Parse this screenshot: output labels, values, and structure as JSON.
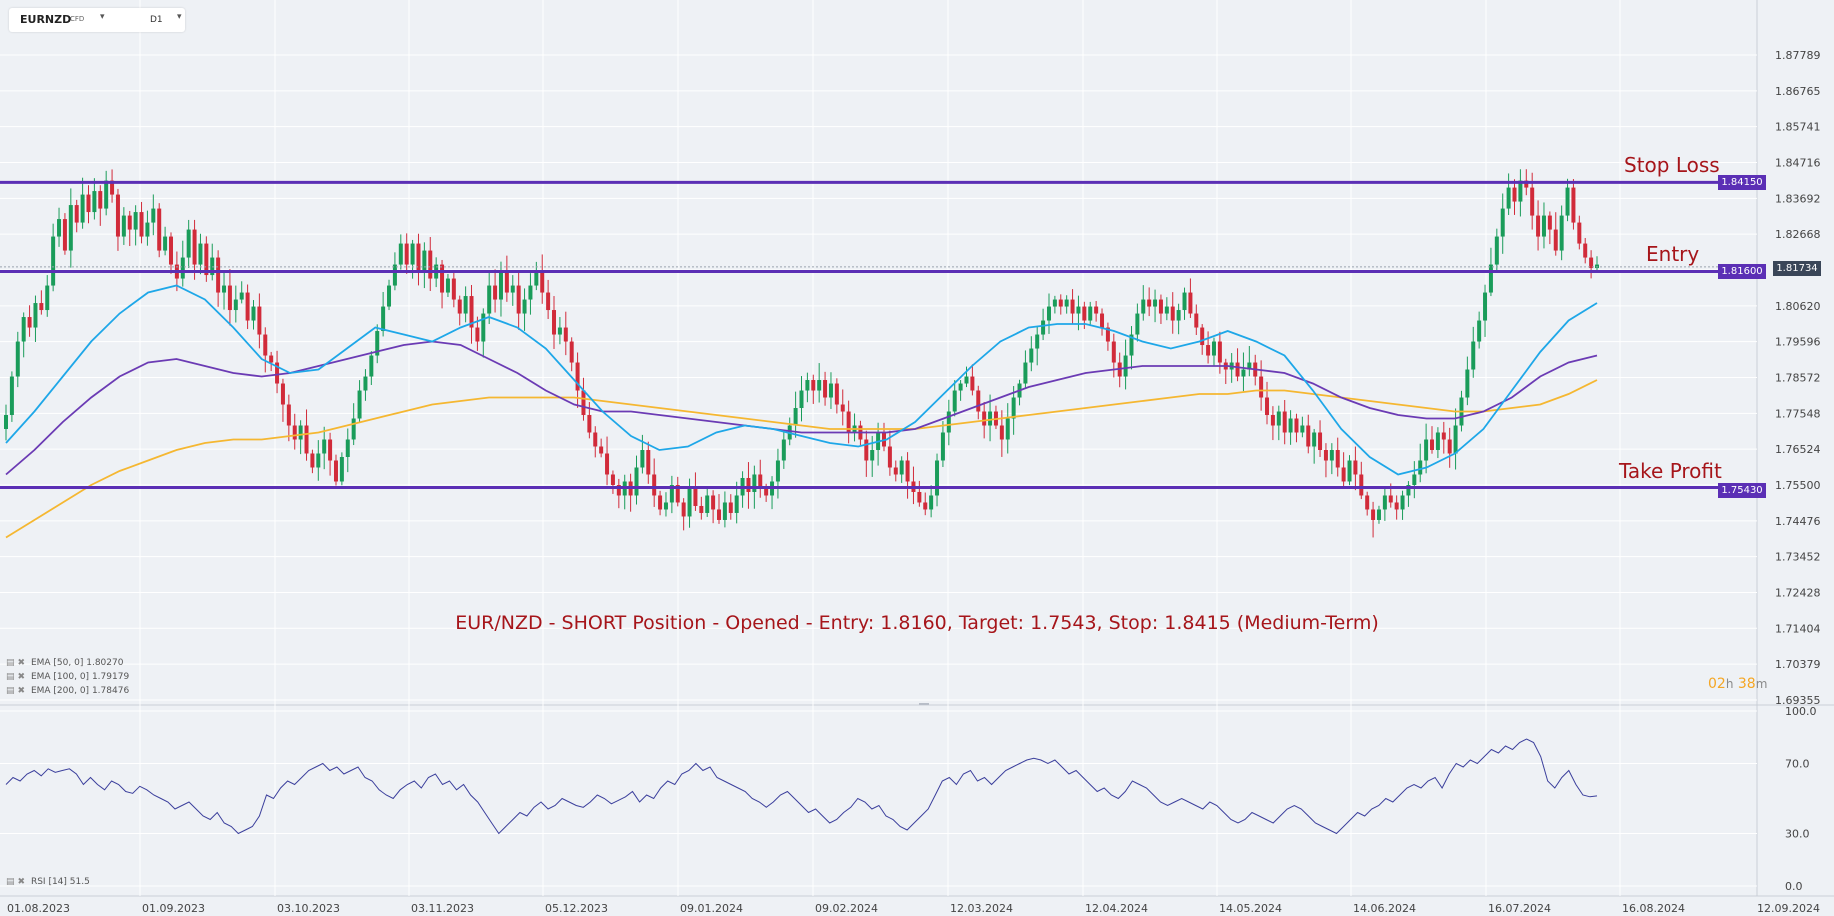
{
  "toolbar": {
    "symbol": "EURNZD",
    "instrument_type": "CFD",
    "timeframe": "D1",
    "caret_icon": "chevron-down-icon"
  },
  "chart_title": "EUR/NZD - SHORT Position - Opened - Entry: 1.8160, Target: 1.7543, Stop: 1.8415 (Medium-Term)",
  "levels": [
    {
      "name": "Stop Loss",
      "value": 1.8415,
      "label": "1.84150",
      "color": "#5b2fb5"
    },
    {
      "name": "Entry",
      "value": 1.816,
      "label": "1.81600",
      "color": "#5b2fb5"
    },
    {
      "name": "Take Profit",
      "value": 1.7543,
      "label": "1.75430",
      "color": "#5b2fb5"
    }
  ],
  "current_price": {
    "value": 1.81734,
    "label": "1.81734",
    "color": "#3a4658"
  },
  "countdown": {
    "h": "02",
    "h_unit": "h",
    "m": "38",
    "m_unit": "m"
  },
  "indicators": [
    {
      "label": "EMA",
      "params": "[50, 0]",
      "value": "1.80270",
      "color": "#1ea7e8"
    },
    {
      "label": "EMA",
      "params": "[100, 0]",
      "value": "1.79179",
      "color": "#6b3bb4"
    },
    {
      "label": "EMA",
      "params": "[200, 0]",
      "value": "1.78476",
      "color": "#f5b731"
    }
  ],
  "rsi_legend": {
    "label": "RSI",
    "params": "[14]",
    "value": "51.5",
    "color": "#3b3f9c"
  },
  "chart_data": {
    "type": "candlestick",
    "price_axis_ticks": [
      "1.87789",
      "1.86765",
      "1.85741",
      "1.84716",
      "1.83692",
      "1.82668",
      "1.81644",
      "1.80620",
      "1.79596",
      "1.78572",
      "1.77548",
      "1.76524",
      "1.75500",
      "1.74476",
      "1.73452",
      "1.72428",
      "1.71404",
      "1.70379",
      "1.69355"
    ],
    "price_ylim": [
      1.69355,
      1.87789
    ],
    "rsi_axis_ticks": [
      "100.0",
      "70.0",
      "30.0",
      "0.0"
    ],
    "rsi_ylim": [
      0,
      100
    ],
    "date_ticks": [
      "01.08.2023",
      "01.09.2023",
      "03.10.2023",
      "03.11.2023",
      "05.12.2023",
      "09.01.2024",
      "09.02.2024",
      "12.03.2024",
      "12.04.2024",
      "14.05.2024",
      "14.06.2024",
      "16.07.2024",
      "16.08.2024",
      "12.09.2024"
    ],
    "close": [
      1.775,
      1.786,
      1.796,
      1.803,
      1.8,
      1.807,
      1.805,
      1.812,
      1.826,
      1.831,
      1.822,
      1.835,
      1.83,
      1.838,
      1.833,
      1.839,
      1.834,
      1.842,
      1.838,
      1.826,
      1.832,
      1.828,
      1.833,
      1.826,
      1.83,
      1.834,
      1.822,
      1.826,
      1.818,
      1.814,
      1.82,
      1.828,
      1.818,
      1.824,
      1.815,
      1.82,
      1.81,
      1.812,
      1.805,
      1.808,
      1.81,
      1.802,
      1.806,
      1.798,
      1.792,
      1.79,
      1.784,
      1.778,
      1.772,
      1.768,
      1.772,
      1.764,
      1.76,
      1.764,
      1.768,
      1.762,
      1.756,
      1.763,
      1.768,
      1.774,
      1.782,
      1.786,
      1.792,
      1.799,
      1.806,
      1.812,
      1.818,
      1.824,
      1.818,
      1.824,
      1.816,
      1.822,
      1.814,
      1.818,
      1.81,
      1.814,
      1.808,
      1.804,
      1.809,
      1.8,
      1.796,
      1.804,
      1.812,
      1.808,
      1.816,
      1.81,
      1.812,
      1.804,
      1.808,
      1.812,
      1.816,
      1.81,
      1.805,
      1.798,
      1.8,
      1.796,
      1.79,
      1.782,
      1.775,
      1.77,
      1.766,
      1.764,
      1.758,
      1.755,
      1.752,
      1.756,
      1.752,
      1.76,
      1.765,
      1.758,
      1.752,
      1.748,
      1.75,
      1.755,
      1.75,
      1.746,
      1.754,
      1.749,
      1.747,
      1.752,
      1.748,
      1.745,
      1.75,
      1.747,
      1.752,
      1.757,
      1.753,
      1.758,
      1.754,
      1.752,
      1.756,
      1.762,
      1.768,
      1.772,
      1.777,
      1.782,
      1.785,
      1.782,
      1.785,
      1.78,
      1.784,
      1.778,
      1.776,
      1.77,
      1.772,
      1.768,
      1.762,
      1.765,
      1.77,
      1.766,
      1.76,
      1.758,
      1.762,
      1.756,
      1.753,
      1.75,
      1.748,
      1.752,
      1.762,
      1.77,
      1.776,
      1.782,
      1.784,
      1.786,
      1.782,
      1.776,
      1.772,
      1.776,
      1.772,
      1.768,
      1.774,
      1.78,
      1.784,
      1.79,
      1.794,
      1.798,
      1.802,
      1.806,
      1.808,
      1.806,
      1.808,
      1.804,
      1.806,
      1.802,
      1.806,
      1.804,
      1.8,
      1.796,
      1.79,
      1.786,
      1.792,
      1.798,
      1.804,
      1.808,
      1.806,
      1.808,
      1.804,
      1.806,
      1.802,
      1.805,
      1.81,
      1.804,
      1.8,
      1.795,
      1.792,
      1.796,
      1.79,
      1.788,
      1.79,
      1.786,
      1.788,
      1.79,
      1.786,
      1.78,
      1.775,
      1.772,
      1.776,
      1.77,
      1.774,
      1.77,
      1.772,
      1.766,
      1.77,
      1.765,
      1.762,
      1.765,
      1.76,
      1.756,
      1.762,
      1.758,
      1.752,
      1.748,
      1.745,
      1.748,
      1.752,
      1.75,
      1.748,
      1.752,
      1.755,
      1.758,
      1.762,
      1.768,
      1.765,
      1.77,
      1.768,
      1.764,
      1.772,
      1.78,
      1.788,
      1.796,
      1.802,
      1.81,
      1.818,
      1.826,
      1.834,
      1.84,
      1.836,
      1.842,
      1.84,
      1.832,
      1.826,
      1.832,
      1.828,
      1.822,
      1.832,
      1.84,
      1.83,
      1.824,
      1.82,
      1.817,
      1.818
    ]
  },
  "rsi_data": [
    58,
    62,
    60,
    64,
    66,
    63,
    67,
    65,
    66,
    67,
    64,
    58,
    62,
    58,
    55,
    60,
    58,
    54,
    53,
    57,
    55,
    52,
    50,
    48,
    44,
    46,
    48,
    44,
    40,
    38,
    42,
    36,
    34,
    30,
    32,
    34,
    40,
    52,
    50,
    56,
    60,
    58,
    62,
    66,
    68,
    70,
    66,
    68,
    64,
    66,
    68,
    62,
    60,
    55,
    52,
    50,
    55,
    58,
    60,
    56,
    62,
    64,
    58,
    60,
    55,
    58,
    52,
    48,
    42,
    36,
    30,
    34,
    38,
    42,
    40,
    45,
    48,
    44,
    46,
    50,
    48,
    46,
    45,
    48,
    52,
    50,
    47,
    49,
    51,
    54,
    48,
    52,
    50,
    56,
    60,
    58,
    64,
    66,
    70,
    66,
    68,
    62,
    60,
    58,
    56,
    54,
    50,
    48,
    45,
    48,
    52,
    54,
    50,
    46,
    42,
    44,
    40,
    36,
    38,
    42,
    45,
    50,
    48,
    44,
    46,
    40,
    38,
    34,
    32,
    36,
    40,
    44,
    52,
    60,
    62,
    58,
    64,
    66,
    60,
    62,
    58,
    62,
    66,
    68,
    70,
    72,
    73,
    72,
    70,
    72,
    68,
    64,
    66,
    62,
    58,
    54,
    56,
    52,
    50,
    54,
    60,
    58,
    56,
    52,
    48,
    46,
    48,
    50,
    48,
    46,
    44,
    48,
    46,
    42,
    38,
    36,
    38,
    42,
    40,
    38,
    36,
    40,
    44,
    46,
    44,
    40,
    36,
    34,
    32,
    30,
    34,
    38,
    42,
    40,
    44,
    46,
    50,
    48,
    52,
    56,
    58,
    56,
    60,
    62,
    56,
    64,
    70,
    68,
    72,
    70,
    74,
    78,
    76,
    80,
    78,
    82,
    84,
    82,
    74,
    60,
    56,
    62,
    66,
    58,
    52,
    51,
    51.5
  ],
  "ema50": [
    1.767,
    1.776,
    1.786,
    1.796,
    1.804,
    1.81,
    1.812,
    1.808,
    1.8,
    1.791,
    1.787,
    1.788,
    1.794,
    1.8,
    1.798,
    1.796,
    1.8,
    1.803,
    1.8,
    1.794,
    1.785,
    1.776,
    1.769,
    1.765,
    1.766,
    1.77,
    1.772,
    1.771,
    1.769,
    1.767,
    1.766,
    1.768,
    1.773,
    1.781,
    1.789,
    1.796,
    1.8,
    1.801,
    1.801,
    1.799,
    1.796,
    1.794,
    1.796,
    1.799,
    1.796,
    1.792,
    1.782,
    1.771,
    1.763,
    1.758,
    1.76,
    1.764,
    1.771,
    1.782,
    1.793,
    1.802,
    1.807
  ],
  "ema100": [
    1.758,
    1.765,
    1.773,
    1.78,
    1.786,
    1.79,
    1.791,
    1.789,
    1.787,
    1.786,
    1.787,
    1.789,
    1.791,
    1.793,
    1.795,
    1.796,
    1.795,
    1.791,
    1.787,
    1.782,
    1.778,
    1.776,
    1.776,
    1.775,
    1.774,
    1.773,
    1.772,
    1.771,
    1.77,
    1.77,
    1.77,
    1.77,
    1.771,
    1.774,
    1.777,
    1.78,
    1.783,
    1.785,
    1.787,
    1.788,
    1.789,
    1.789,
    1.789,
    1.789,
    1.788,
    1.787,
    1.784,
    1.78,
    1.777,
    1.775,
    1.774,
    1.774,
    1.776,
    1.78,
    1.786,
    1.79,
    1.792
  ],
  "ema200": [
    1.74,
    1.745,
    1.75,
    1.755,
    1.759,
    1.762,
    1.765,
    1.767,
    1.768,
    1.768,
    1.769,
    1.77,
    1.772,
    1.774,
    1.776,
    1.778,
    1.779,
    1.78,
    1.78,
    1.78,
    1.78,
    1.779,
    1.778,
    1.777,
    1.776,
    1.775,
    1.774,
    1.773,
    1.772,
    1.771,
    1.771,
    1.771,
    1.771,
    1.772,
    1.773,
    1.774,
    1.775,
    1.776,
    1.777,
    1.778,
    1.779,
    1.78,
    1.781,
    1.781,
    1.782,
    1.782,
    1.781,
    1.78,
    1.779,
    1.778,
    1.777,
    1.776,
    1.776,
    1.777,
    1.778,
    1.781,
    1.785
  ]
}
